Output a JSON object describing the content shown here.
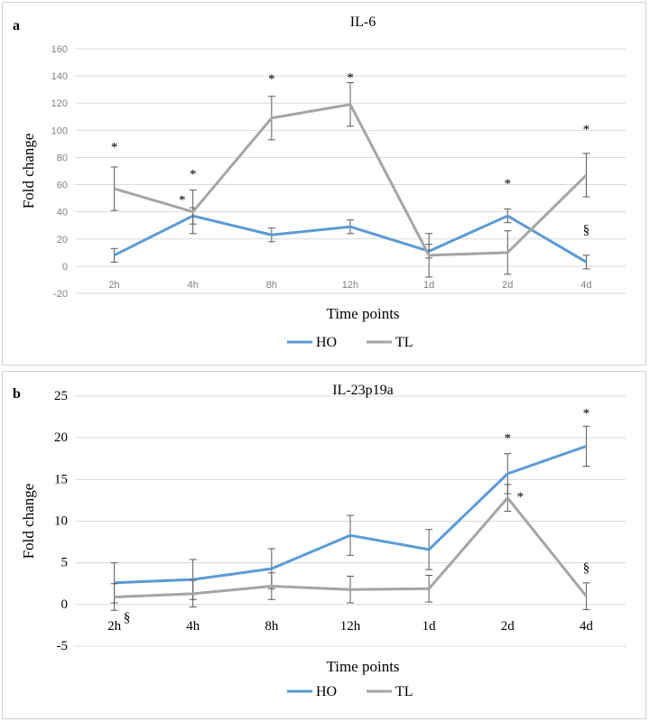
{
  "chart_data": [
    {
      "type": "line",
      "panel_label": "a",
      "title": "IL-6",
      "xlabel": "Time points",
      "ylabel": "Fold change",
      "categories": [
        "2h",
        "4h",
        "8h",
        "12h",
        "1d",
        "2d",
        "4d"
      ],
      "ylim": [
        -20,
        160
      ],
      "yticks": [
        "-20",
        "0",
        "20",
        "40",
        "60",
        "80",
        "100",
        "120",
        "140",
        "160"
      ],
      "grid": true,
      "legend": "bottom",
      "series": [
        {
          "name": "HO",
          "color": "#5b9bd5",
          "values": [
            8,
            37,
            23,
            29,
            11,
            37,
            3
          ],
          "errors": [
            5,
            6,
            5,
            5,
            5,
            5,
            5
          ]
        },
        {
          "name": "TL",
          "color": "#a5a5a5",
          "values": [
            57,
            40,
            109,
            119,
            8,
            10,
            67
          ],
          "errors": [
            16,
            16,
            16,
            16,
            16,
            16,
            16
          ]
        }
      ],
      "annotations": [
        {
          "text": "*",
          "category": "2h",
          "y": 88
        },
        {
          "text": "*",
          "category": "4h",
          "y": 68
        },
        {
          "text": "*",
          "category": "4h",
          "y": 49,
          "dx": -12
        },
        {
          "text": "*",
          "category": "8h",
          "y": 138
        },
        {
          "text": "*",
          "category": "12h",
          "y": 139
        },
        {
          "text": "*",
          "category": "2d",
          "y": 61
        },
        {
          "text": "*",
          "category": "4d",
          "y": 101
        },
        {
          "text": "§",
          "category": "4d",
          "y": 27
        }
      ]
    },
    {
      "type": "line",
      "panel_label": "b",
      "title": "IL-23p19a",
      "xlabel": "Time points",
      "ylabel": "Fold change",
      "categories": [
        "2h",
        "4h",
        "8h",
        "12h",
        "1d",
        "2d",
        "4d"
      ],
      "ylim": [
        -5,
        25
      ],
      "yticks": [
        "-5",
        "0",
        "5",
        "10",
        "15",
        "20",
        "25"
      ],
      "grid": true,
      "legend": "bottom",
      "series": [
        {
          "name": "HO",
          "color": "#5b9bd5",
          "values": [
            2.6,
            3.0,
            4.3,
            8.3,
            6.6,
            15.7,
            19.0
          ],
          "errors": [
            2.4,
            2.4,
            2.4,
            2.4,
            2.4,
            2.4,
            2.4
          ]
        },
        {
          "name": "TL",
          "color": "#a5a5a5",
          "values": [
            0.9,
            1.3,
            2.2,
            1.8,
            1.9,
            12.8,
            1.0
          ],
          "errors": [
            1.6,
            1.6,
            1.6,
            1.6,
            1.6,
            1.6,
            1.6
          ]
        }
      ],
      "annotations": [
        {
          "text": "*",
          "category": "2d",
          "y": 20
        },
        {
          "text": "*",
          "category": "2d",
          "y": 13,
          "dx": 14
        },
        {
          "text": "*",
          "category": "4d",
          "y": 23
        },
        {
          "text": "§",
          "category": "4d",
          "y": 4.5
        },
        {
          "text": "§",
          "category": "2h",
          "y": -1.5,
          "dx": 14
        }
      ]
    }
  ]
}
